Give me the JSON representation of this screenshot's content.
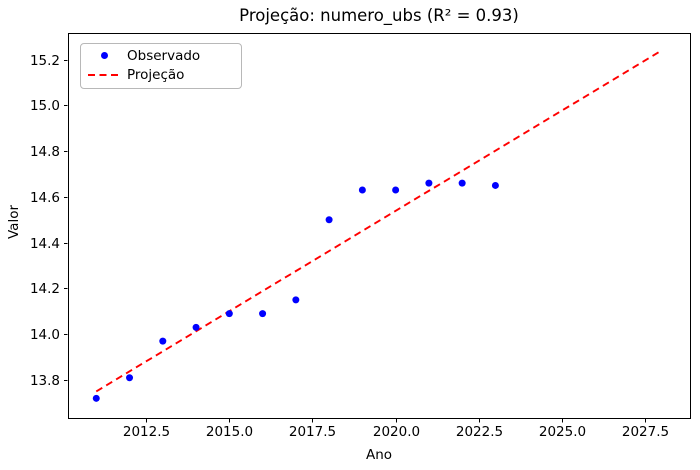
{
  "chart_data": {
    "type": "scatter",
    "title": "Projeção: numero_ubs (R² = 0.93)",
    "xlabel": "Ano",
    "ylabel": "Valor",
    "xlim": [
      2010.15,
      2028.85
    ],
    "ylim": [
      13.634,
      15.316
    ],
    "grid": false,
    "legend_position": "upper-left",
    "x_ticks": [
      2012.5,
      2015.0,
      2017.5,
      2020.0,
      2022.5,
      2025.0,
      2027.5
    ],
    "x_tick_labels": [
      "2012.5",
      "2015.0",
      "2017.5",
      "2020.0",
      "2022.5",
      "2025.0",
      "2027.5"
    ],
    "y_ticks": [
      13.8,
      14.0,
      14.2,
      14.4,
      14.6,
      14.8,
      15.0,
      15.2
    ],
    "y_tick_labels": [
      "13.8",
      "14.0",
      "14.2",
      "14.4",
      "14.6",
      "14.8",
      "15.0",
      "15.2"
    ],
    "series": [
      {
        "name": "Observado",
        "type": "scatter",
        "marker": "dot",
        "color": "#0000ff",
        "x": [
          2011,
          2012,
          2013,
          2014,
          2015,
          2016,
          2017,
          2018,
          2019,
          2020,
          2021,
          2022,
          2023
        ],
        "y": [
          13.72,
          13.81,
          13.97,
          14.03,
          14.09,
          14.09,
          14.15,
          14.5,
          14.63,
          14.63,
          14.66,
          14.66,
          14.65
        ]
      },
      {
        "name": "Projeção",
        "type": "line",
        "linestyle": "dashed",
        "color": "#ff0000",
        "x": [
          2011,
          2028
        ],
        "y": [
          13.75,
          15.24
        ]
      }
    ]
  },
  "colors": {
    "observed": "#0000ff",
    "projection": "#ff0000",
    "axis": "#000000",
    "background": "#ffffff",
    "legend_border": "#b8b8b8"
  }
}
